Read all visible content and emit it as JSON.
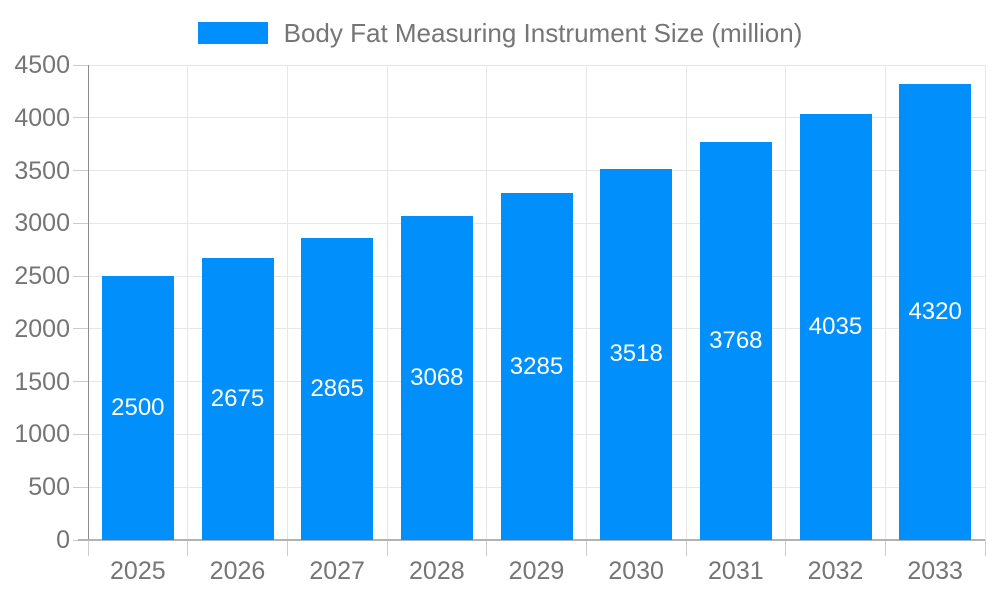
{
  "chart_data": {
    "type": "bar",
    "title": "Body Fat Measuring Instrument Size (million)",
    "categories": [
      "2025",
      "2026",
      "2027",
      "2028",
      "2029",
      "2030",
      "2031",
      "2032",
      "2033"
    ],
    "values": [
      2500,
      2675,
      2865,
      3068,
      3285,
      3518,
      3768,
      4035,
      4320
    ],
    "xlabel": "",
    "ylabel": "",
    "ylim": [
      0,
      4500
    ],
    "ytick_interval": 500,
    "yticks": [
      0,
      500,
      1000,
      1500,
      2000,
      2500,
      3000,
      3500,
      4000,
      4500
    ],
    "legend_position": "top-center",
    "grid": "horizontal and vertical",
    "bar_labels_inside": true,
    "colors": {
      "bar": "#008ffb",
      "bar_label": "#ffffff",
      "axis_label": "#757575",
      "title": "#757575",
      "axis_line": "#8c8c8c",
      "baseline": "#b3b3b3",
      "gridline": "#e7e7e7",
      "tick": "#cccccc",
      "background": "#ffffff"
    }
  }
}
